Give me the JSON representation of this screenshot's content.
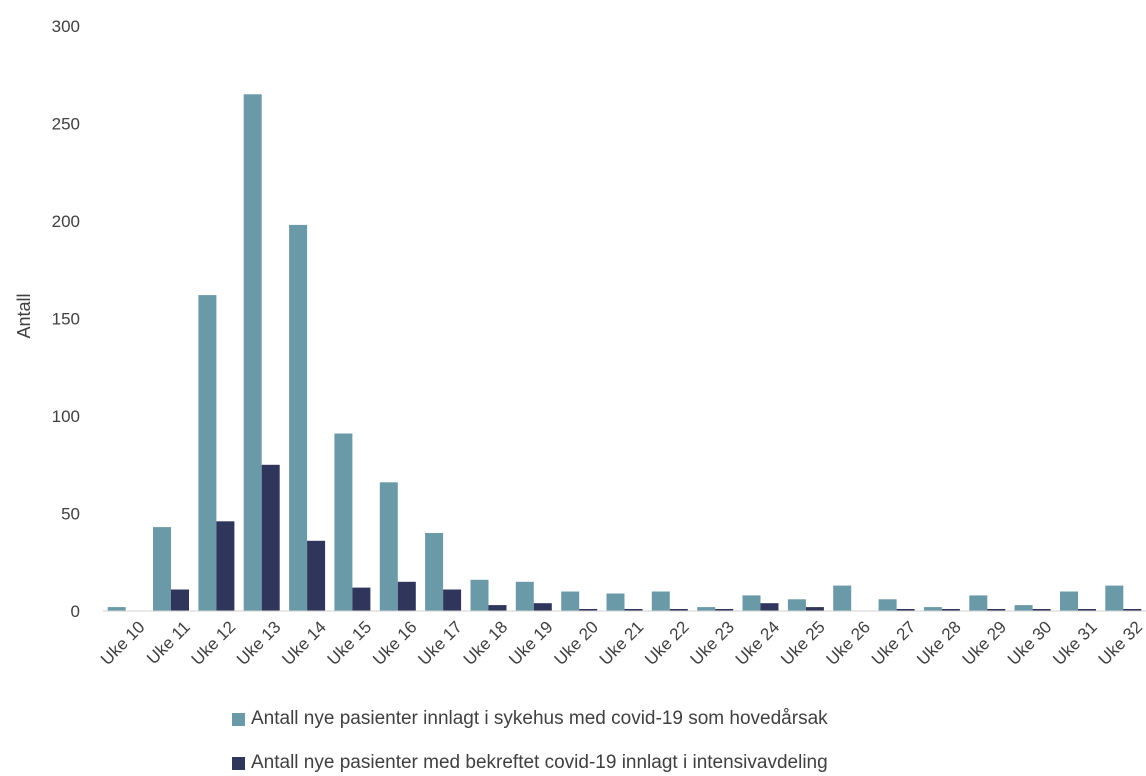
{
  "chart_data": {
    "type": "bar",
    "ylabel": "Antall",
    "ylim": [
      0,
      300
    ],
    "yticks": [
      0,
      50,
      100,
      150,
      200,
      250,
      300
    ],
    "grid": false,
    "legend_position": "bottom",
    "categories": [
      "Uke 10",
      "Uke 11",
      "Uke 12",
      "Uke 13",
      "Uke 14",
      "Uke 15",
      "Uke 16",
      "Uke 17",
      "Uke 18",
      "Uke 19",
      "Uke 20",
      "Uke 21",
      "Uke 22",
      "Uke 23",
      "Uke 24",
      "Uke 25",
      "Uke 26",
      "Uke 27",
      "Uke 28",
      "Uke 29",
      "Uke 30",
      "Uke 31",
      "Uke 32"
    ],
    "series": [
      {
        "name": "Antall nye pasienter innlagt i sykehus med covid-19 som hovedårsak",
        "color": "#6a9aa8",
        "values": [
          2,
          43,
          162,
          265,
          198,
          91,
          66,
          40,
          16,
          15,
          10,
          9,
          10,
          2,
          8,
          6,
          13,
          6,
          2,
          8,
          3,
          10,
          13
        ]
      },
      {
        "name": "Antall nye pasienter med bekreftet covid-19 innlagt i intensivavdeling",
        "color": "#30365b",
        "values": [
          0,
          11,
          46,
          75,
          36,
          12,
          15,
          11,
          3,
          4,
          1,
          1,
          1,
          1,
          4,
          2,
          0,
          1,
          1,
          1,
          1,
          1,
          1
        ]
      }
    ]
  }
}
